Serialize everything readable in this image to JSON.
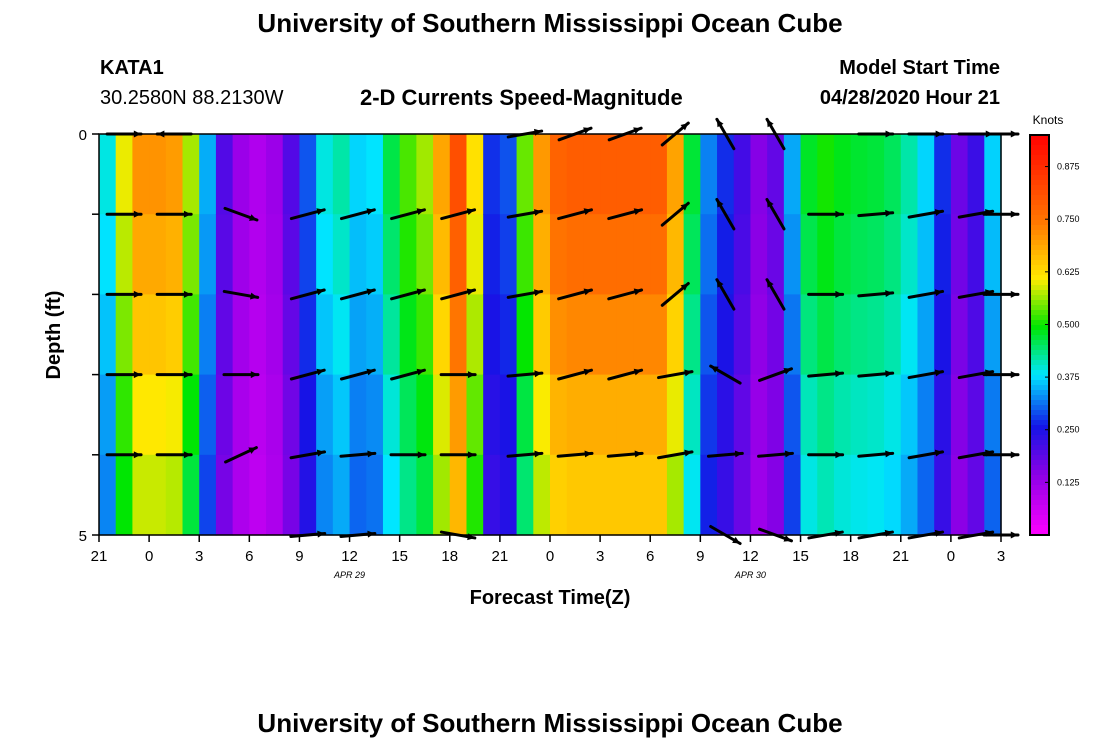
{
  "header": {
    "title": "University of Southern Mississippi Ocean Cube",
    "footer_title": "University of Southern Mississippi Ocean Cube",
    "station": "KATA1",
    "coords": "30.2580N 88.2130W",
    "chart_title": "2-D Currents Speed-Magnitude",
    "start_label": "Model Start Time",
    "start_value": "04/28/2020 Hour 21"
  },
  "chart_data": {
    "type": "heatmap",
    "title": "2-D Currents Speed-Magnitude",
    "xlabel": "Forecast Time(Z)",
    "ylabel": "Depth (ft)",
    "x_ticks": [
      "21",
      "0",
      "3",
      "6",
      "9",
      "12",
      "15",
      "18",
      "21",
      "0",
      "3",
      "6",
      "9",
      "12",
      "15",
      "18",
      "21",
      "0",
      "3"
    ],
    "x_tick_hours": [
      0,
      3,
      6,
      9,
      12,
      15,
      18,
      21,
      24,
      27,
      30,
      33,
      36,
      39,
      42,
      45,
      48,
      51,
      54
    ],
    "date_labels": [
      {
        "text": "APR 29",
        "hour": 15
      },
      {
        "text": "APR 30",
        "hour": 39
      }
    ],
    "xlim": [
      0,
      54
    ],
    "ylim": [
      0,
      5
    ],
    "y_ticks": [
      "0",
      "5"
    ],
    "y_tick_positions": [
      0,
      1,
      2,
      3,
      4,
      5
    ],
    "colorbar": {
      "label": "Knots",
      "ticks": [
        "0.875",
        "0.750",
        "0.625",
        "0.500",
        "0.375",
        "0.250",
        "0.125"
      ],
      "tick_values": [
        0.875,
        0.75,
        0.625,
        0.5,
        0.375,
        0.25,
        0.125
      ],
      "vmin": 0,
      "vmax": 0.95
    },
    "time_hours": [
      0,
      1,
      2,
      3,
      4,
      5,
      6,
      7,
      8,
      9,
      10,
      11,
      12,
      13,
      14,
      15,
      16,
      17,
      18,
      19,
      20,
      21,
      22,
      23,
      24,
      25,
      26,
      27,
      28,
      29,
      30,
      31,
      32,
      33,
      34,
      35,
      36,
      37,
      38,
      39,
      40,
      41,
      42,
      43,
      44,
      45,
      46,
      47,
      48,
      49,
      50,
      51,
      52,
      53,
      54
    ],
    "surface_speed": [
      0.3,
      0.5,
      0.72,
      0.72,
      0.72,
      0.7,
      0.45,
      0.25,
      0.15,
      0.1,
      0.1,
      0.15,
      0.25,
      0.35,
      0.45,
      0.4,
      0.35,
      0.42,
      0.52,
      0.55,
      0.6,
      0.8,
      0.85,
      0.4,
      0.15,
      0.45,
      0.65,
      0.78,
      0.8,
      0.8,
      0.8,
      0.8,
      0.8,
      0.8,
      0.8,
      0.6,
      0.35,
      0.3,
      0.25,
      0.18,
      0.12,
      0.25,
      0.45,
      0.52,
      0.5,
      0.48,
      0.48,
      0.47,
      0.45,
      0.4,
      0.35,
      0.2,
      0.15,
      0.3,
      0.45
    ],
    "depth_factor": [
      1.0,
      0.97,
      0.93,
      0.88,
      0.82,
      0.8
    ],
    "vectors": {
      "hours": [
        1.5,
        4.5,
        8.5,
        12.5,
        15.5,
        18.5,
        21.5,
        25.5,
        28.5,
        31.5,
        34.5,
        37.5,
        40.5,
        43.5,
        46.5,
        49.5,
        52.5,
        54
      ],
      "depths": [
        0,
        1,
        2,
        3,
        4,
        5
      ],
      "angles_deg": [
        [
          0,
          180,
          null,
          null,
          null,
          null,
          null,
          10,
          20,
          20,
          40,
          120,
          120,
          null,
          0,
          0,
          0,
          0
        ],
        [
          0,
          0,
          -20,
          15,
          15,
          15,
          15,
          10,
          15,
          15,
          40,
          120,
          120,
          0,
          5,
          10,
          10,
          0
        ],
        [
          0,
          0,
          -10,
          15,
          15,
          15,
          15,
          10,
          15,
          15,
          40,
          120,
          120,
          0,
          5,
          10,
          10,
          0
        ],
        [
          0,
          0,
          0,
          15,
          15,
          15,
          0,
          5,
          15,
          15,
          10,
          150,
          20,
          5,
          5,
          10,
          10,
          0
        ],
        [
          0,
          0,
          25,
          10,
          5,
          0,
          0,
          5,
          5,
          5,
          10,
          5,
          5,
          0,
          5,
          10,
          10,
          0
        ],
        [
          null,
          null,
          null,
          5,
          5,
          null,
          -10,
          null,
          null,
          null,
          null,
          -30,
          -20,
          10,
          10,
          10,
          10,
          0
        ]
      ]
    }
  }
}
